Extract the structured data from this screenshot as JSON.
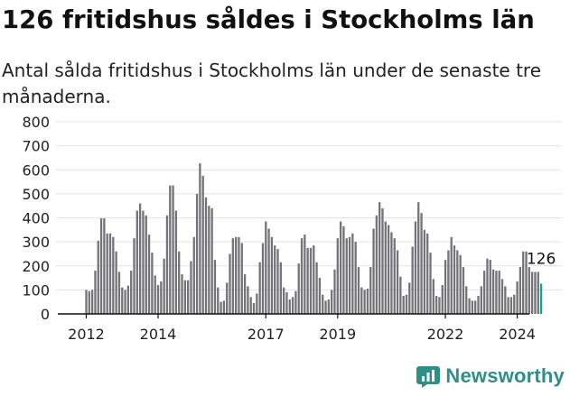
{
  "title": "126 fritidshus såldes i Stockholms län",
  "subtitle": "Antal sålda fritidshus i Stockholms län under de senaste tre månaderna.",
  "brand": {
    "name": "Newsworthy",
    "color": "#2d8f88"
  },
  "colors": {
    "bar": "#737378",
    "highlight": "#1a9e8f"
  },
  "chart_data": {
    "type": "bar",
    "ylim": [
      0,
      800
    ],
    "yticks": [
      0,
      100,
      200,
      300,
      400,
      500,
      600,
      700,
      800
    ],
    "xticks": [
      {
        "label": "2012",
        "index": 0
      },
      {
        "label": "2014",
        "index": 24
      },
      {
        "label": "2017",
        "index": 60
      },
      {
        "label": "2019",
        "index": 84
      },
      {
        "label": "2022",
        "index": 120
      },
      {
        "label": "2024",
        "index": 144
      }
    ],
    "start": "2012-01",
    "values": [
      100,
      95,
      100,
      180,
      305,
      398,
      398,
      335,
      335,
      320,
      260,
      175,
      110,
      100,
      118,
      180,
      315,
      430,
      460,
      430,
      410,
      330,
      255,
      160,
      120,
      135,
      230,
      410,
      535,
      535,
      430,
      260,
      165,
      140,
      140,
      220,
      320,
      500,
      627,
      575,
      485,
      450,
      440,
      225,
      110,
      50,
      55,
      130,
      250,
      315,
      320,
      320,
      295,
      165,
      115,
      70,
      45,
      85,
      215,
      295,
      385,
      355,
      320,
      285,
      270,
      215,
      110,
      90,
      60,
      70,
      95,
      210,
      315,
      330,
      275,
      275,
      285,
      215,
      150,
      80,
      55,
      60,
      100,
      185,
      315,
      385,
      365,
      315,
      320,
      335,
      300,
      195,
      110,
      100,
      105,
      195,
      355,
      410,
      465,
      440,
      385,
      370,
      340,
      315,
      265,
      155,
      75,
      80,
      130,
      280,
      385,
      465,
      420,
      350,
      335,
      255,
      145,
      75,
      70,
      120,
      225,
      265,
      320,
      285,
      265,
      245,
      195,
      115,
      65,
      55,
      55,
      75,
      115,
      180,
      230,
      225,
      185,
      180,
      180,
      145,
      115,
      70,
      70,
      80,
      135,
      195,
      260,
      260,
      195,
      175,
      175,
      175,
      126
    ],
    "highlight_label": "126"
  }
}
